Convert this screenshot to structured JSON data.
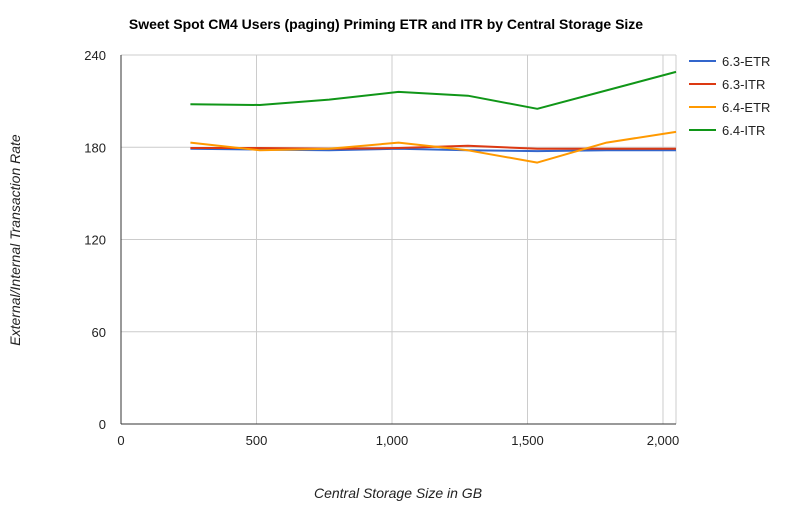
{
  "chart_data": {
    "type": "line",
    "title": "Sweet Spot CM4 Users (paging) Priming ETR and ITR by Central Storage Size",
    "xlabel": "Central Storage Size in GB",
    "ylabel": "External/Internal Transaction Rate",
    "xlim": [
      0,
      2048
    ],
    "ylim": [
      0,
      240
    ],
    "x_ticks": [
      0,
      500,
      1000,
      1500,
      2000
    ],
    "x_tick_labels": [
      "0",
      "500",
      "1,000",
      "1,500",
      "2,000"
    ],
    "y_ticks": [
      0,
      60,
      120,
      180,
      240
    ],
    "y_tick_labels": [
      "0",
      "60",
      "120",
      "180",
      "240"
    ],
    "grid": true,
    "legend_position": "right",
    "x": [
      256,
      512,
      768,
      1024,
      1280,
      1536,
      1792,
      2048
    ],
    "series": [
      {
        "name": "6.3-ETR",
        "color": "#3366cc",
        "values": [
          179,
          178.5,
          178,
          179,
          178,
          177.5,
          178,
          178
        ]
      },
      {
        "name": "6.3-ITR",
        "color": "#dc3912",
        "values": [
          179.5,
          179.5,
          179,
          179.5,
          181,
          179,
          179,
          179
        ]
      },
      {
        "name": "6.4-ETR",
        "color": "#ff9900",
        "values": [
          183,
          178,
          179,
          183,
          178,
          170,
          183,
          190
        ]
      },
      {
        "name": "6.4-ITR",
        "color": "#109618",
        "values": [
          208,
          207.5,
          211,
          216,
          213.5,
          205,
          217,
          229
        ]
      }
    ]
  }
}
